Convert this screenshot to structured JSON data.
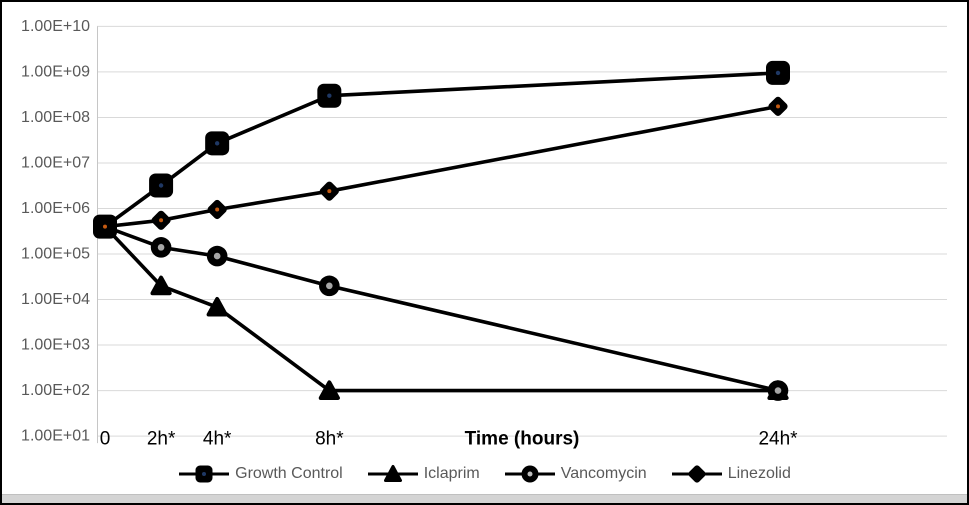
{
  "chart_data": {
    "type": "line",
    "title": "",
    "xlabel": "Time (hours)",
    "ylabel": "",
    "x_unit": "hours",
    "x": [
      0,
      2,
      4,
      8,
      24
    ],
    "x_tick_labels": [
      "0",
      "2h*",
      "4h*",
      "8h*",
      "24h*"
    ],
    "y_scale": "log10",
    "ylim": [
      10,
      10000000000
    ],
    "y_tick_labels": [
      "1.00E+10",
      "1.00E+09",
      "1.00E+08",
      "1.00E+07",
      "1.00E+06",
      "1.00E+05",
      "1.00E+04",
      "1.00E+03",
      "1.00E+02",
      "1.00E+01"
    ],
    "grid": "horizontal",
    "legend_position": "bottom",
    "series": [
      {
        "name": "Growth Control",
        "marker": "square",
        "values": [
          400000.0,
          3200000.0,
          27000000.0,
          300000000.0,
          950000000.0
        ]
      },
      {
        "name": "Iclaprim",
        "marker": "triangle",
        "values": [
          400000.0,
          20000.0,
          6800.0,
          100.0,
          100.0
        ]
      },
      {
        "name": "Vancomycin",
        "marker": "circle",
        "values": [
          400000.0,
          140000.0,
          90000.0,
          20000.0,
          100.0
        ]
      },
      {
        "name": "Linezolid",
        "marker": "diamond",
        "values": [
          400000.0,
          550000.0,
          950000.0,
          2400000.0,
          175000000.0
        ]
      }
    ],
    "colors": {
      "series_line": "#000000",
      "marker_fill": "#000000",
      "gridline": "#d9d9d9",
      "axis_line": "#c6c6c6",
      "y_tick_text": "#595959",
      "x_tick_text": "#000000",
      "axis_title_text": "#000000",
      "legend_text": "#595959",
      "square_center_dot": "#1f3864",
      "circle_center_dot": "#a6a6a6",
      "diamond_center_dot": "#c55a11"
    }
  }
}
